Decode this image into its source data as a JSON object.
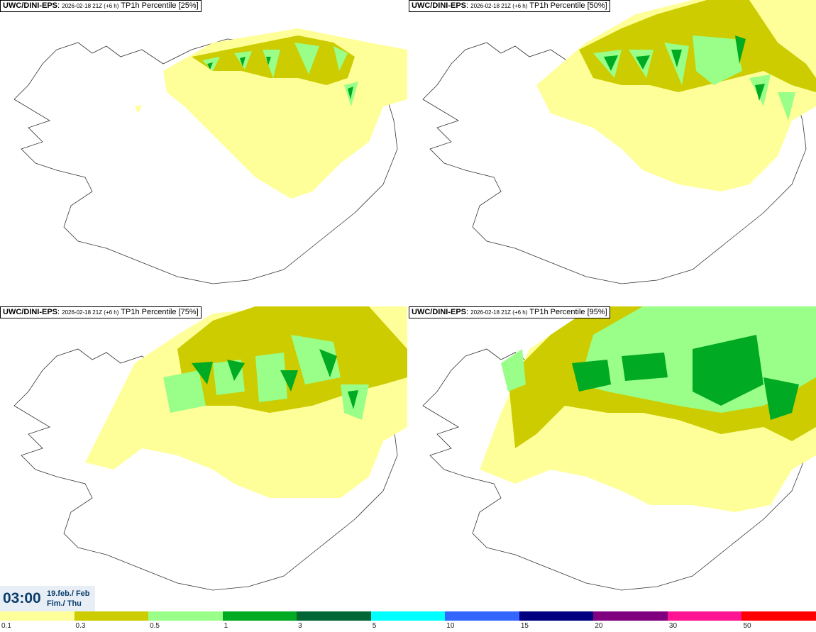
{
  "panels": [
    {
      "model": "UWC/DINI-EPS",
      "run": "2026-02-18 21Z (+6 h)",
      "param": "TP1h Percentile [25%]"
    },
    {
      "model": "UWC/DINI-EPS",
      "run": "2026-02-18 21Z (+6 h)",
      "param": "TP1h Percentile [50%]"
    },
    {
      "model": "UWC/DINI-EPS",
      "run": "2026-02-18 21Z (+6 h)",
      "param": "TP1h Percentile [75%]"
    },
    {
      "model": "UWC/DINI-EPS",
      "run": "2026-02-18 21Z (+6 h)",
      "param": "TP1h Percentile [95%]"
    }
  ],
  "time": {
    "clock": "03:00",
    "date_line1": "19.feb./ Feb",
    "date_line2": "Fim./ Thu"
  },
  "legend": {
    "colors": [
      "#ffff99",
      "#cccc00",
      "#99ff88",
      "#00aa22",
      "#006633",
      "#00ffff",
      "#3366ff",
      "#000080",
      "#800080",
      "#ff1493",
      "#ff0000"
    ],
    "ticks": [
      "0.1",
      "0.3",
      "0.5",
      "1",
      "3",
      "5",
      "10",
      "15",
      "20",
      "30",
      "50"
    ]
  }
}
